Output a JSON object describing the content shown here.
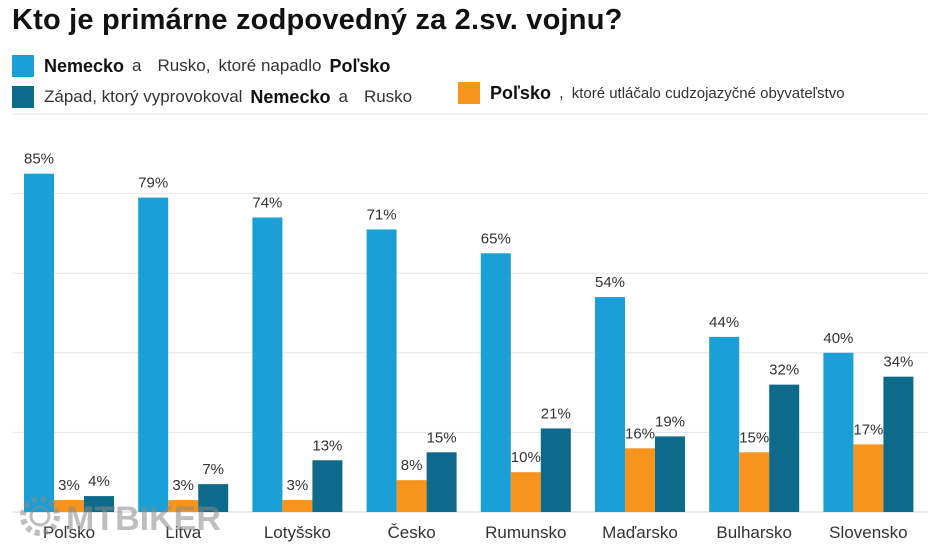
{
  "title": "Kto je primárne zodpovedný za 2.sv. vojnu?",
  "legend": {
    "row1": {
      "a": "Nemecko",
      "b": "a",
      "c": "Rusko,",
      "d": "ktoré napadlo",
      "e": "Poľsko"
    },
    "row2": {
      "a": "Západ, ktorý vyprovokoval",
      "b": "Nemecko",
      "c": "a",
      "d": "Rusko"
    },
    "row3": {
      "a": "Poľsko",
      "b": ",",
      "c": "ktoré utláčalo cudzojazyčné obyvateľstvo"
    }
  },
  "colors": {
    "light_blue": "#1a9fd6",
    "dark_blue": "#0e6a8a",
    "orange": "#f7941d",
    "grid": "#e6e6e6",
    "text": "#333333"
  },
  "watermark": "MTBIKER",
  "chart_data": {
    "type": "bar",
    "title": "Kto je primárne zodpovedný za 2.sv. vojnu?",
    "xlabel": "",
    "ylabel": "",
    "ylim": [
      0,
      100
    ],
    "grid": true,
    "categories": [
      "Poľsko",
      "Litva",
      "Lotyšsko",
      "Česko",
      "Rumunsko",
      "Maďarsko",
      "Bulharsko",
      "Slovensko"
    ],
    "series": [
      {
        "name": "Nemecko a Rusko, ktoré napadlo Poľsko",
        "color": "#1a9fd6",
        "values": [
          85,
          79,
          74,
          71,
          65,
          54,
          44,
          40
        ],
        "labels": [
          "85%",
          "79%",
          "74%",
          "71%",
          "65%",
          "54%",
          "44%",
          "40%"
        ]
      },
      {
        "name": "Poľsko, ktoré utláčalo cudzojazyčné obyvateľstvo",
        "color": "#f7941d",
        "values": [
          3,
          3,
          3,
          8,
          10,
          16,
          15,
          17
        ],
        "labels": [
          "3%",
          "3%",
          "3%",
          "8%",
          "10%",
          "16%",
          "15%",
          "17%"
        ]
      },
      {
        "name": "Západ, ktorý vyprovokoval Nemecko a Rusko",
        "color": "#0e6a8a",
        "values": [
          4,
          7,
          13,
          15,
          21,
          19,
          32,
          34
        ],
        "labels": [
          "4%",
          "7%",
          "13%",
          "15%",
          "21%",
          "19%",
          "32%",
          "34%"
        ]
      }
    ]
  }
}
